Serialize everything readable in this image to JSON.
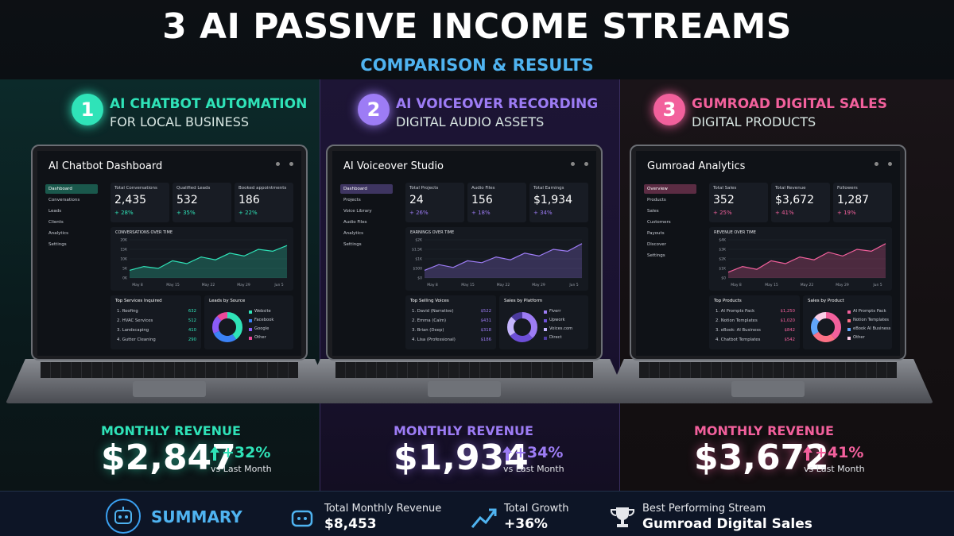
{
  "header": {
    "title": "3 AI PASSIVE INCOME STREAMS",
    "subtitle": "COMPARISON & RESULTS"
  },
  "panels": [
    {
      "number": "1",
      "title": "AI CHATBOT AUTOMATION",
      "subtitle": "FOR LOCAL BUSINESS",
      "color": "#2fe3b8",
      "dashboard": {
        "title": "AI Chatbot Dashboard",
        "nav": [
          "Dashboard",
          "Conversations",
          "Leads",
          "Clients",
          "Analytics",
          "Settings"
        ],
        "stats": [
          {
            "label": "Total Conversations",
            "value": "2,435",
            "change": "+ 28%"
          },
          {
            "label": "Qualified Leads",
            "value": "532",
            "change": "+ 35%"
          },
          {
            "label": "Booked appointments",
            "value": "186",
            "change": "+ 22%"
          }
        ],
        "trend": {
          "title": "CONVERSATIONS OVER TIME",
          "ylim": [
            0,
            20000
          ],
          "yticks": [
            {
              "value": 20000,
              "label": "20K"
            },
            {
              "value": 15000,
              "label": "15K"
            },
            {
              "value": 10000,
              "label": "10K"
            },
            {
              "value": 5000,
              "label": "5K"
            },
            {
              "value": 0,
              "label": "0K"
            }
          ],
          "xlabels": [
            "May 8",
            "May 15",
            "May 22",
            "May 29",
            "Jun 5"
          ],
          "values": [
            4000,
            6000,
            5000,
            9000,
            7500,
            11000,
            9500,
            13000,
            11500,
            15000,
            14000,
            17000
          ]
        },
        "list": {
          "title": "Top Services Inquired",
          "items": [
            {
              "label": "1. Roofing",
              "value": "632"
            },
            {
              "label": "2. HVAC Services",
              "value": "512"
            },
            {
              "label": "3. Landscaping",
              "value": "410"
            },
            {
              "label": "4. Gutter Cleaning",
              "value": "290"
            }
          ]
        },
        "donut": {
          "title": "Leads by Source",
          "items": [
            {
              "label": "Website",
              "value": 40,
              "color": "#2fe3b8"
            },
            {
              "label": "Facebook",
              "value": 28,
              "color": "#3b82f6"
            },
            {
              "label": "Google",
              "value": 20,
              "color": "#8b5cf6"
            },
            {
              "label": "Other",
              "value": 12,
              "color": "#ec4899"
            }
          ]
        }
      },
      "revenue": {
        "label": "MONTHLY REVENUE",
        "value": "$2,847",
        "change": "+32%",
        "note": "vs Last Month"
      }
    },
    {
      "number": "2",
      "title": "AI VOICEOVER RECORDING",
      "subtitle": "DIGITAL AUDIO ASSETS",
      "color": "#9d7cf5",
      "dashboard": {
        "title": "AI Voiceover Studio",
        "nav": [
          "Dashboard",
          "Projects",
          "Voice Library",
          "Audio Files",
          "Analytics",
          "Settings"
        ],
        "stats": [
          {
            "label": "Total Projects",
            "value": "24",
            "change": "+ 26%"
          },
          {
            "label": "Audio Files",
            "value": "156",
            "change": "+ 18%"
          },
          {
            "label": "Total Earnings",
            "value": "$1,934",
            "change": "+ 34%"
          }
        ],
        "trend": {
          "title": "EARNINGS OVER TIME",
          "ylim": [
            0,
            2000
          ],
          "yticks": [
            {
              "value": 2000,
              "label": "$2K"
            },
            {
              "value": 1500,
              "label": "$1.5K"
            },
            {
              "value": 1000,
              "label": "$1K"
            },
            {
              "value": 500,
              "label": "$500"
            },
            {
              "value": 0,
              "label": "$0"
            }
          ],
          "xlabels": [
            "May 8",
            "May 15",
            "May 22",
            "May 29",
            "Jun 5"
          ],
          "values": [
            400,
            700,
            550,
            900,
            800,
            1100,
            950,
            1300,
            1150,
            1500,
            1400,
            1800
          ]
        },
        "list": {
          "title": "Top Selling Voices",
          "items": [
            {
              "label": "1. David (Narrative)",
              "value": "$522"
            },
            {
              "label": "2. Emma (Calm)",
              "value": "$431"
            },
            {
              "label": "3. Brian (Deep)",
              "value": "$318"
            },
            {
              "label": "4. Lisa (Professional)",
              "value": "$186"
            }
          ]
        },
        "donut": {
          "title": "Sales by Platform",
          "items": [
            {
              "label": "Fiverr",
              "value": 38,
              "color": "#9d7cf5"
            },
            {
              "label": "Upwork",
              "value": 27,
              "color": "#6d4fd8"
            },
            {
              "label": "Voices.com",
              "value": 22,
              "color": "#c4b5fd"
            },
            {
              "label": "Direct",
              "value": 13,
              "color": "#4c3a9e"
            }
          ]
        }
      },
      "revenue": {
        "label": "MONTHLY REVENUE",
        "value": "$1,934",
        "change": "+34%",
        "note": "vs Last Month"
      }
    },
    {
      "number": "3",
      "title": "GUMROAD DIGITAL SALES",
      "subtitle": "DIGITAL PRODUCTS",
      "color": "#f2609c",
      "dashboard": {
        "title": "Gumroad Analytics",
        "nav": [
          "Overview",
          "Products",
          "Sales",
          "Customers",
          "Payouts",
          "Discover",
          "Settings"
        ],
        "stats": [
          {
            "label": "Total Sales",
            "value": "352",
            "change": "+ 25%"
          },
          {
            "label": "Total Revenue",
            "value": "$3,672",
            "change": "+ 41%"
          },
          {
            "label": "Followers",
            "value": "1,287",
            "change": "+ 19%"
          }
        ],
        "trend": {
          "title": "REVENUE OVER TIME",
          "ylim": [
            0,
            4000
          ],
          "yticks": [
            {
              "value": 4000,
              "label": "$4K"
            },
            {
              "value": 3000,
              "label": "$3K"
            },
            {
              "value": 2000,
              "label": "$2K"
            },
            {
              "value": 1000,
              "label": "$1K"
            },
            {
              "value": 0,
              "label": "$0"
            }
          ],
          "xlabels": [
            "May 8",
            "May 15",
            "May 22",
            "May 29",
            "Jun 5"
          ],
          "values": [
            600,
            1200,
            900,
            1800,
            1500,
            2200,
            1900,
            2700,
            2300,
            3000,
            2800,
            3600
          ]
        },
        "list": {
          "title": "Top Products",
          "items": [
            {
              "label": "1. AI Prompts Pack",
              "value": "$1,250"
            },
            {
              "label": "2. Notion Templates",
              "value": "$1,020"
            },
            {
              "label": "3. eBook: AI Business",
              "value": "$842"
            },
            {
              "label": "4. Chatbot Templates",
              "value": "$542"
            }
          ]
        },
        "donut": {
          "title": "Sales by Product",
          "items": [
            {
              "label": "AI Prompts Pack",
              "value": 40,
              "color": "#f2609c"
            },
            {
              "label": "Notion Templates",
              "value": 26,
              "color": "#fb7185"
            },
            {
              "label": "eBook AI Business",
              "value": 20,
              "color": "#60a5fa"
            },
            {
              "label": "Other",
              "value": 14,
              "color": "#fbcfe8"
            }
          ]
        }
      },
      "revenue": {
        "label": "MONTHLY REVENUE",
        "value": "$3,672",
        "change": "+41%",
        "note": "vs Last Month"
      }
    }
  ],
  "summary": {
    "title": "SUMMARY",
    "items": [
      {
        "label": "Total Monthly Revenue",
        "value": "$8,453"
      },
      {
        "label": "Total Growth",
        "value": "+36%"
      },
      {
        "label": "Best Performing Stream",
        "value": "Gumroad Digital Sales"
      }
    ]
  }
}
